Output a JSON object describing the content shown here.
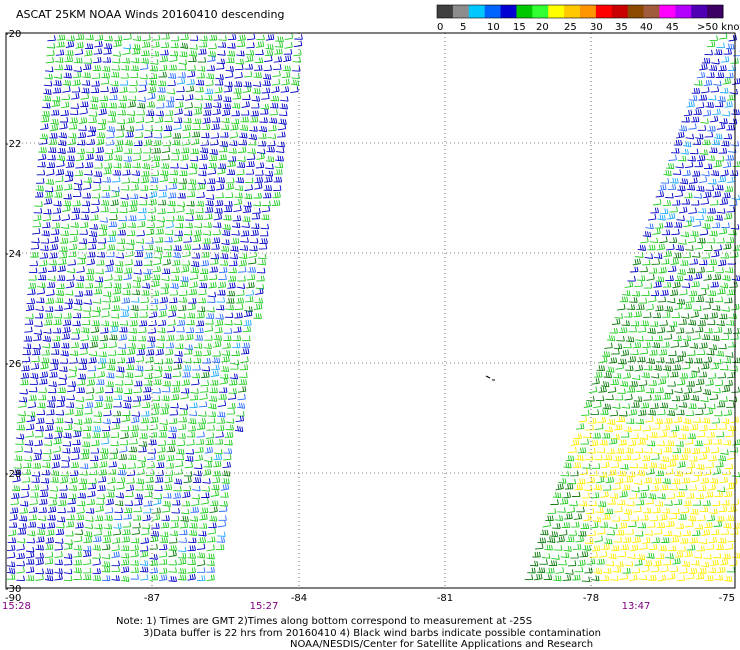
{
  "title": "ASCAT 25KM NOAA Winds 20160410 descending",
  "legend": {
    "labels": [
      "0",
      "5",
      "10",
      "15",
      "20",
      "25",
      "30",
      "35",
      "40",
      "45",
      ">50 knots"
    ],
    "colors": [
      "#404040",
      "#8c8c8c",
      "#00c8ff",
      "#0064ff",
      "#0000d2",
      "#00c800",
      "#32ff32",
      "#ffff00",
      "#ffc800",
      "#ff9600",
      "#ff0000",
      "#c80000",
      "#8c4a00",
      "#a05a3c",
      "#ff00ff",
      "#b400ff",
      "#5000b4",
      "#3c0064"
    ]
  },
  "map": {
    "lat_labels": [
      "-20",
      "-22",
      "-24",
      "-26",
      "-28",
      "-30"
    ],
    "lon_labels": [
      "-90",
      "-87",
      "-84",
      "-81",
      "-78",
      "-75"
    ],
    "time_labels": {
      "left_start": "15:28",
      "left_end": "15:27",
      "right": "13:47"
    },
    "time_color": "#800080",
    "palette": {
      "blue": "#0000c8",
      "mid_blue": "#2a6cff",
      "cyan": "#22aaff",
      "green": "#22cc22",
      "dark_green": "#0a7a0a",
      "yellow": "#ffee00"
    }
  },
  "notes": {
    "line1": "Note: 1) Times are GMT 2)Times along bottom correspond to measurement at -25S",
    "line2": "3)Data buffer is 22 hrs from 20160410 4) Black wind barbs indicate possible contamination",
    "line3": "NOAA/NESDIS/Center for Satellite Applications and Research"
  }
}
